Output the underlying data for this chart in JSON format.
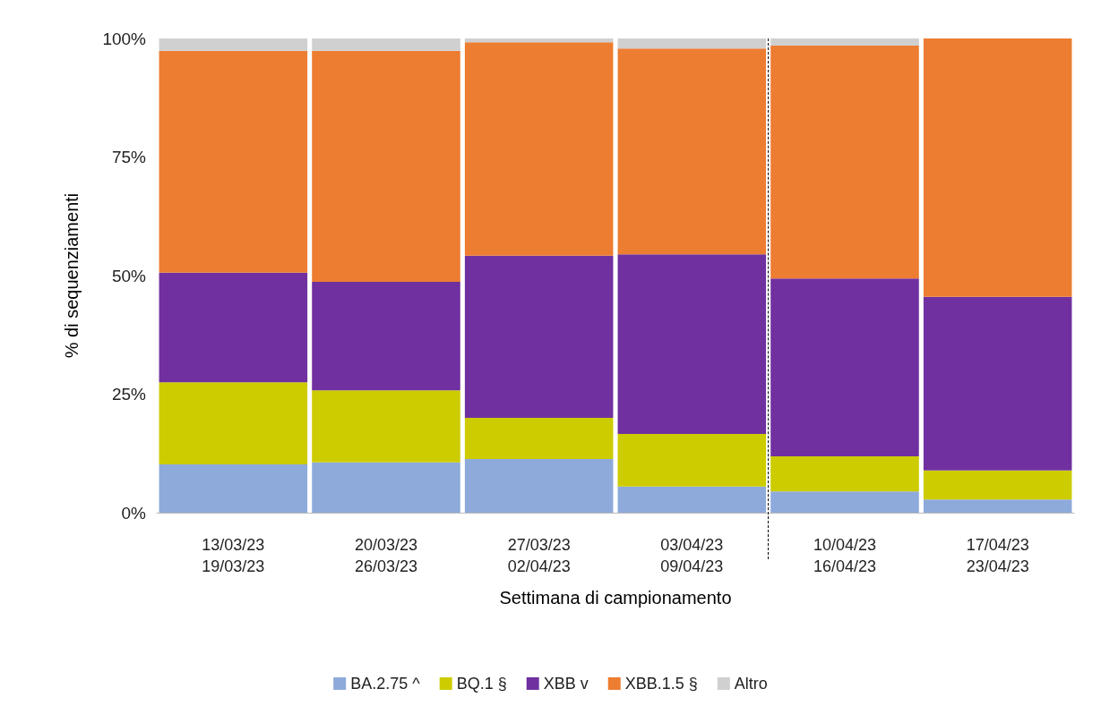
{
  "chart_data": {
    "type": "bar",
    "stacked": true,
    "xlabel": "Settimana di campionamento",
    "ylabel": "% di sequenziamenti",
    "categories": [
      "13/03/23\n19/03/23",
      "20/03/23\n26/03/23",
      "27/03/23\n02/04/23",
      "03/04/23\n09/04/23",
      "10/04/23\n16/04/23",
      "17/04/23\n23/04/23"
    ],
    "series": [
      {
        "name": "BA.2.75 ^",
        "color": "#8eaadb",
        "values": [
          10.2,
          10.6,
          11.3,
          5.5,
          4.5,
          2.8
        ]
      },
      {
        "name": "BQ.1 §",
        "color": "#cccc00",
        "values": [
          17.3,
          15.2,
          8.7,
          11.1,
          7.4,
          6.1
        ]
      },
      {
        "name": "XBB v",
        "color": "#7030a0",
        "values": [
          23.1,
          22.9,
          34.2,
          37.9,
          37.5,
          36.6
        ]
      },
      {
        "name": "XBB.1.5 §",
        "color": "#ed7d31",
        "values": [
          46.8,
          48.7,
          45,
          43.4,
          49.1,
          54.5
        ]
      },
      {
        "name": "Altro",
        "color": "#d0d0d0",
        "values": [
          2.6,
          2.6,
          0.8,
          2.1,
          1.5,
          0
        ]
      }
    ],
    "ylim": [
      0,
      100
    ],
    "yticks": [
      {
        "value": 0,
        "label": "0%"
      },
      {
        "value": 25,
        "label": "25%"
      },
      {
        "value": 50,
        "label": "50%"
      },
      {
        "value": 75,
        "label": "75%"
      },
      {
        "value": 100,
        "label": "100%"
      }
    ],
    "grid": false,
    "legend": "bottom"
  }
}
